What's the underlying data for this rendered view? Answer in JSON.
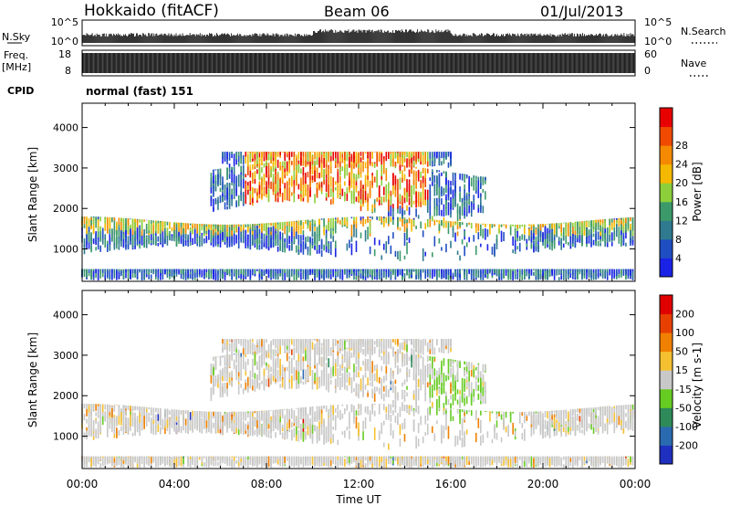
{
  "header": {
    "station": "Hokkaido (fitACF)",
    "beam": "Beam 06",
    "date": "01/Jul/2013"
  },
  "strips": {
    "nsky_label": "N.Sky",
    "nsky_ticks": [
      "10^5",
      "10^0"
    ],
    "nsearch_label": "N.Search",
    "nsearch_ticks": [
      "10^5",
      "10^0"
    ],
    "freq_label": "Freq.",
    "freq_unit": "[MHz]",
    "freq_ticks": [
      "18",
      "8"
    ],
    "nave_label": "Nave",
    "nave_ticks": [
      "60",
      "0"
    ],
    "cpid_label": "CPID",
    "cpid_value": "normal (fast) 151"
  },
  "chart_data": [
    {
      "type": "heatmap",
      "title": "",
      "xlabel": "Time UT",
      "ylabel": "Slant Range [km]",
      "xlim": [
        0,
        24
      ],
      "ylim": [
        200,
        4600
      ],
      "yticks": [
        1000,
        2000,
        3000,
        4000
      ],
      "colorbar": {
        "label": "Power [dB]",
        "ticks": [
          "4",
          "8",
          "12",
          "16",
          "20",
          "24",
          "28"
        ],
        "colors": [
          "#1a22e6",
          "#1f4ec2",
          "#2f7a8f",
          "#3c9a6a",
          "#8ccf3a",
          "#f5b800",
          "#f58a00",
          "#f04a00",
          "#e80000"
        ]
      },
      "features": [
        {
          "name": "near-range band",
          "x": [
            0,
            24
          ],
          "y": [
            900,
            1700
          ]
        },
        {
          "name": "far-range band",
          "x": [
            6,
            17
          ],
          "y": [
            1900,
            3200
          ]
        },
        {
          "name": "late band",
          "x": [
            19.5,
            24
          ],
          "y": [
            800,
            1700
          ]
        }
      ]
    },
    {
      "type": "heatmap",
      "title": "",
      "xlabel": "Time UT",
      "ylabel": "Slant Range [km]",
      "xlim": [
        0,
        24
      ],
      "ylim": [
        200,
        4600
      ],
      "yticks": [
        1000,
        2000,
        3000,
        4000
      ],
      "colorbar": {
        "label": "Velocity [m s-1]",
        "ticks": [
          "200",
          "100",
          "50",
          "15",
          "-15",
          "-50",
          "-100",
          "-200"
        ],
        "colors": [
          "#1f2fbf",
          "#2a6ab0",
          "#2f8a5a",
          "#66cc22",
          "#c8c8c8",
          "#f5c030",
          "#f08000",
          "#e84000",
          "#e00000"
        ]
      }
    }
  ],
  "x_axis": {
    "ticks": [
      "00:00",
      "04:00",
      "08:00",
      "12:00",
      "16:00",
      "20:00",
      "00:00"
    ],
    "label": "Time UT"
  }
}
